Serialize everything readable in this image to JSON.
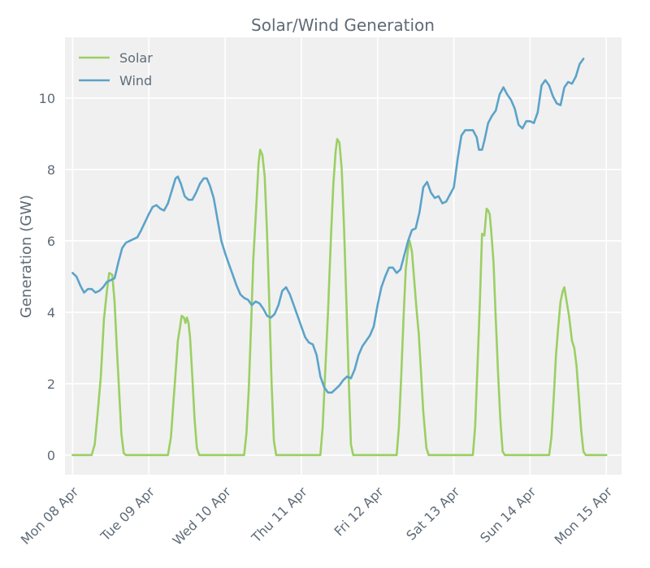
{
  "chart_data": {
    "type": "line",
    "title": "Solar/Wind Generation",
    "xlabel": "",
    "ylabel": "Generation (GW)",
    "xlim": [
      -0.1,
      7.2
    ],
    "ylim": [
      -0.55,
      11.7
    ],
    "yticks": [
      0,
      2,
      4,
      6,
      8,
      10
    ],
    "grid": true,
    "legend_position": "top-left",
    "categories": [
      "Mon 08 Apr",
      "Tue 09 Apr",
      "Wed 10 Apr",
      "Thu 11 Apr",
      "Fri 12 Apr",
      "Sat 13 Apr",
      "Sun 14 Apr",
      "Mon 15 Apr"
    ],
    "colors": {
      "Solar": "#9bcf63",
      "Wind": "#5ba3c9",
      "plot_bg": "#f0f0f0",
      "grid": "#ffffff",
      "text": "#5f6b77"
    },
    "series": [
      {
        "name": "Solar",
        "points": [
          [
            0.0,
            0
          ],
          [
            0.25,
            0
          ],
          [
            0.29,
            0.3
          ],
          [
            0.33,
            1.2
          ],
          [
            0.37,
            2.2
          ],
          [
            0.41,
            3.8
          ],
          [
            0.45,
            4.6
          ],
          [
            0.48,
            5.1
          ],
          [
            0.52,
            5.05
          ],
          [
            0.55,
            4.3
          ],
          [
            0.58,
            3.0
          ],
          [
            0.61,
            1.8
          ],
          [
            0.64,
            0.6
          ],
          [
            0.67,
            0.05
          ],
          [
            0.7,
            0
          ],
          [
            1.0,
            0
          ],
          [
            1.25,
            0
          ],
          [
            1.29,
            0.5
          ],
          [
            1.32,
            1.4
          ],
          [
            1.35,
            2.3
          ],
          [
            1.38,
            3.2
          ],
          [
            1.41,
            3.6
          ],
          [
            1.43,
            3.9
          ],
          [
            1.46,
            3.85
          ],
          [
            1.48,
            3.7
          ],
          [
            1.5,
            3.85
          ],
          [
            1.52,
            3.7
          ],
          [
            1.54,
            3.3
          ],
          [
            1.57,
            2.2
          ],
          [
            1.6,
            1.0
          ],
          [
            1.63,
            0.2
          ],
          [
            1.66,
            0
          ],
          [
            2.0,
            0
          ],
          [
            2.25,
            0
          ],
          [
            2.28,
            0.6
          ],
          [
            2.31,
            1.8
          ],
          [
            2.34,
            3.6
          ],
          [
            2.37,
            5.5
          ],
          [
            2.41,
            7.0
          ],
          [
            2.44,
            8.2
          ],
          [
            2.46,
            8.55
          ],
          [
            2.49,
            8.4
          ],
          [
            2.52,
            7.8
          ],
          [
            2.55,
            6.2
          ],
          [
            2.58,
            4.2
          ],
          [
            2.61,
            2.0
          ],
          [
            2.64,
            0.4
          ],
          [
            2.67,
            0
          ],
          [
            3.0,
            0
          ],
          [
            3.25,
            0
          ],
          [
            3.28,
            0.8
          ],
          [
            3.31,
            2.2
          ],
          [
            3.35,
            4.0
          ],
          [
            3.39,
            6.2
          ],
          [
            3.42,
            7.6
          ],
          [
            3.45,
            8.5
          ],
          [
            3.47,
            8.85
          ],
          [
            3.5,
            8.75
          ],
          [
            3.53,
            8.0
          ],
          [
            3.56,
            6.4
          ],
          [
            3.59,
            4.3
          ],
          [
            3.62,
            2.2
          ],
          [
            3.65,
            0.3
          ],
          [
            3.68,
            0
          ],
          [
            4.0,
            0
          ],
          [
            4.25,
            0
          ],
          [
            4.28,
            0.8
          ],
          [
            4.31,
            2.2
          ],
          [
            4.34,
            3.8
          ],
          [
            4.37,
            5.2
          ],
          [
            4.4,
            5.8
          ],
          [
            4.42,
            6.0
          ],
          [
            4.45,
            5.7
          ],
          [
            4.48,
            4.9
          ],
          [
            4.51,
            4.1
          ],
          [
            4.54,
            3.4
          ],
          [
            4.57,
            2.3
          ],
          [
            4.6,
            1.2
          ],
          [
            4.64,
            0.2
          ],
          [
            4.67,
            0
          ],
          [
            5.0,
            0
          ],
          [
            5.25,
            0
          ],
          [
            5.28,
            0.8
          ],
          [
            5.31,
            2.5
          ],
          [
            5.34,
            4.2
          ],
          [
            5.37,
            6.2
          ],
          [
            5.4,
            6.15
          ],
          [
            5.43,
            6.9
          ],
          [
            5.45,
            6.85
          ],
          [
            5.47,
            6.75
          ],
          [
            5.49,
            6.3
          ],
          [
            5.52,
            5.4
          ],
          [
            5.55,
            3.8
          ],
          [
            5.58,
            2.3
          ],
          [
            5.61,
            1.0
          ],
          [
            5.64,
            0.1
          ],
          [
            5.67,
            0
          ],
          [
            6.0,
            0
          ],
          [
            6.25,
            0
          ],
          [
            6.28,
            0.5
          ],
          [
            6.31,
            1.6
          ],
          [
            6.34,
            2.8
          ],
          [
            6.37,
            3.6
          ],
          [
            6.4,
            4.3
          ],
          [
            6.43,
            4.6
          ],
          [
            6.45,
            4.7
          ],
          [
            6.48,
            4.3
          ],
          [
            6.51,
            3.9
          ],
          [
            6.55,
            3.2
          ],
          [
            6.58,
            3.0
          ],
          [
            6.61,
            2.5
          ],
          [
            6.64,
            1.6
          ],
          [
            6.67,
            0.7
          ],
          [
            6.7,
            0.1
          ],
          [
            6.73,
            0
          ],
          [
            7.0,
            0
          ]
        ]
      },
      {
        "name": "Wind",
        "points": [
          [
            0.0,
            5.1
          ],
          [
            0.05,
            5.0
          ],
          [
            0.1,
            4.75
          ],
          [
            0.15,
            4.55
          ],
          [
            0.2,
            4.65
          ],
          [
            0.25,
            4.65
          ],
          [
            0.3,
            4.55
          ],
          [
            0.35,
            4.6
          ],
          [
            0.4,
            4.7
          ],
          [
            0.45,
            4.85
          ],
          [
            0.5,
            4.9
          ],
          [
            0.55,
            4.95
          ],
          [
            0.6,
            5.4
          ],
          [
            0.65,
            5.8
          ],
          [
            0.7,
            5.95
          ],
          [
            0.75,
            6.0
          ],
          [
            0.8,
            6.05
          ],
          [
            0.85,
            6.1
          ],
          [
            0.9,
            6.3
          ],
          [
            1.0,
            6.75
          ],
          [
            1.05,
            6.95
          ],
          [
            1.1,
            7.0
          ],
          [
            1.15,
            6.9
          ],
          [
            1.2,
            6.85
          ],
          [
            1.25,
            7.05
          ],
          [
            1.3,
            7.4
          ],
          [
            1.35,
            7.75
          ],
          [
            1.38,
            7.8
          ],
          [
            1.42,
            7.6
          ],
          [
            1.47,
            7.25
          ],
          [
            1.52,
            7.15
          ],
          [
            1.57,
            7.15
          ],
          [
            1.62,
            7.35
          ],
          [
            1.67,
            7.6
          ],
          [
            1.72,
            7.75
          ],
          [
            1.76,
            7.75
          ],
          [
            1.8,
            7.55
          ],
          [
            1.85,
            7.2
          ],
          [
            1.9,
            6.6
          ],
          [
            1.95,
            6.0
          ],
          [
            2.0,
            5.65
          ],
          [
            2.05,
            5.35
          ],
          [
            2.1,
            5.05
          ],
          [
            2.15,
            4.75
          ],
          [
            2.2,
            4.5
          ],
          [
            2.25,
            4.4
          ],
          [
            2.3,
            4.35
          ],
          [
            2.35,
            4.2
          ],
          [
            2.4,
            4.3
          ],
          [
            2.45,
            4.25
          ],
          [
            2.5,
            4.1
          ],
          [
            2.55,
            3.9
          ],
          [
            2.6,
            3.85
          ],
          [
            2.65,
            3.95
          ],
          [
            2.7,
            4.2
          ],
          [
            2.75,
            4.6
          ],
          [
            2.8,
            4.7
          ],
          [
            2.85,
            4.5
          ],
          [
            2.9,
            4.2
          ],
          [
            2.95,
            3.9
          ],
          [
            3.0,
            3.6
          ],
          [
            3.05,
            3.3
          ],
          [
            3.1,
            3.15
          ],
          [
            3.15,
            3.1
          ],
          [
            3.2,
            2.8
          ],
          [
            3.25,
            2.2
          ],
          [
            3.3,
            1.9
          ],
          [
            3.35,
            1.75
          ],
          [
            3.4,
            1.75
          ],
          [
            3.45,
            1.85
          ],
          [
            3.5,
            1.95
          ],
          [
            3.55,
            2.1
          ],
          [
            3.6,
            2.2
          ],
          [
            3.65,
            2.15
          ],
          [
            3.7,
            2.4
          ],
          [
            3.75,
            2.8
          ],
          [
            3.8,
            3.05
          ],
          [
            3.85,
            3.2
          ],
          [
            3.9,
            3.35
          ],
          [
            3.95,
            3.6
          ],
          [
            4.0,
            4.2
          ],
          [
            4.05,
            4.7
          ],
          [
            4.1,
            5.0
          ],
          [
            4.15,
            5.25
          ],
          [
            4.2,
            5.25
          ],
          [
            4.25,
            5.1
          ],
          [
            4.3,
            5.2
          ],
          [
            4.35,
            5.6
          ],
          [
            4.4,
            6.0
          ],
          [
            4.45,
            6.3
          ],
          [
            4.5,
            6.35
          ],
          [
            4.55,
            6.8
          ],
          [
            4.6,
            7.5
          ],
          [
            4.65,
            7.65
          ],
          [
            4.7,
            7.35
          ],
          [
            4.75,
            7.2
          ],
          [
            4.8,
            7.25
          ],
          [
            4.85,
            7.05
          ],
          [
            4.9,
            7.1
          ],
          [
            4.95,
            7.3
          ],
          [
            5.0,
            7.5
          ],
          [
            5.05,
            8.3
          ],
          [
            5.1,
            8.95
          ],
          [
            5.15,
            9.1
          ],
          [
            5.2,
            9.1
          ],
          [
            5.25,
            9.1
          ],
          [
            5.3,
            8.9
          ],
          [
            5.33,
            8.55
          ],
          [
            5.37,
            8.55
          ],
          [
            5.4,
            8.8
          ],
          [
            5.45,
            9.3
          ],
          [
            5.5,
            9.5
          ],
          [
            5.55,
            9.65
          ],
          [
            5.6,
            10.1
          ],
          [
            5.65,
            10.3
          ],
          [
            5.7,
            10.1
          ],
          [
            5.75,
            9.95
          ],
          [
            5.8,
            9.7
          ],
          [
            5.85,
            9.25
          ],
          [
            5.9,
            9.15
          ],
          [
            5.95,
            9.35
          ],
          [
            6.0,
            9.35
          ],
          [
            6.05,
            9.3
          ],
          [
            6.1,
            9.6
          ],
          [
            6.15,
            10.35
          ],
          [
            6.2,
            10.5
          ],
          [
            6.25,
            10.35
          ],
          [
            6.3,
            10.05
          ],
          [
            6.35,
            9.85
          ],
          [
            6.4,
            9.8
          ],
          [
            6.45,
            10.3
          ],
          [
            6.5,
            10.45
          ],
          [
            6.55,
            10.4
          ],
          [
            6.6,
            10.6
          ],
          [
            6.65,
            10.95
          ],
          [
            6.7,
            11.1
          ]
        ]
      }
    ]
  }
}
